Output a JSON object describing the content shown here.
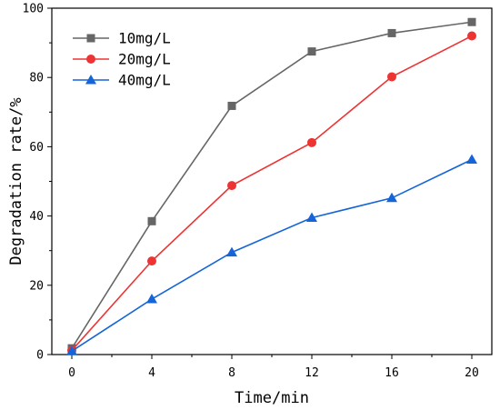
{
  "chart_data": {
    "type": "line",
    "xlabel": "Time/min",
    "ylabel": "Degradation rate/%",
    "xlim": [
      -1,
      21
    ],
    "ylim": [
      0,
      100
    ],
    "x_ticks": [
      0,
      4,
      8,
      12,
      16,
      20
    ],
    "y_ticks": [
      0,
      20,
      40,
      60,
      80,
      100
    ],
    "grid": false,
    "legend_position": "top-left",
    "x": [
      0,
      4,
      8,
      12,
      16,
      20
    ],
    "series": [
      {
        "name": "10mg/L",
        "color": "#666666",
        "marker": "square",
        "values": [
          1.8,
          38.5,
          71.8,
          87.5,
          92.8,
          96.0
        ]
      },
      {
        "name": "20mg/L",
        "color": "#ee3333",
        "marker": "circle",
        "values": [
          1.2,
          27.0,
          48.8,
          61.2,
          80.2,
          92.0
        ]
      },
      {
        "name": "40mg/L",
        "color": "#1565d8",
        "marker": "triangle",
        "values": [
          1.0,
          16.0,
          29.5,
          39.5,
          45.2,
          56.3
        ]
      }
    ]
  }
}
